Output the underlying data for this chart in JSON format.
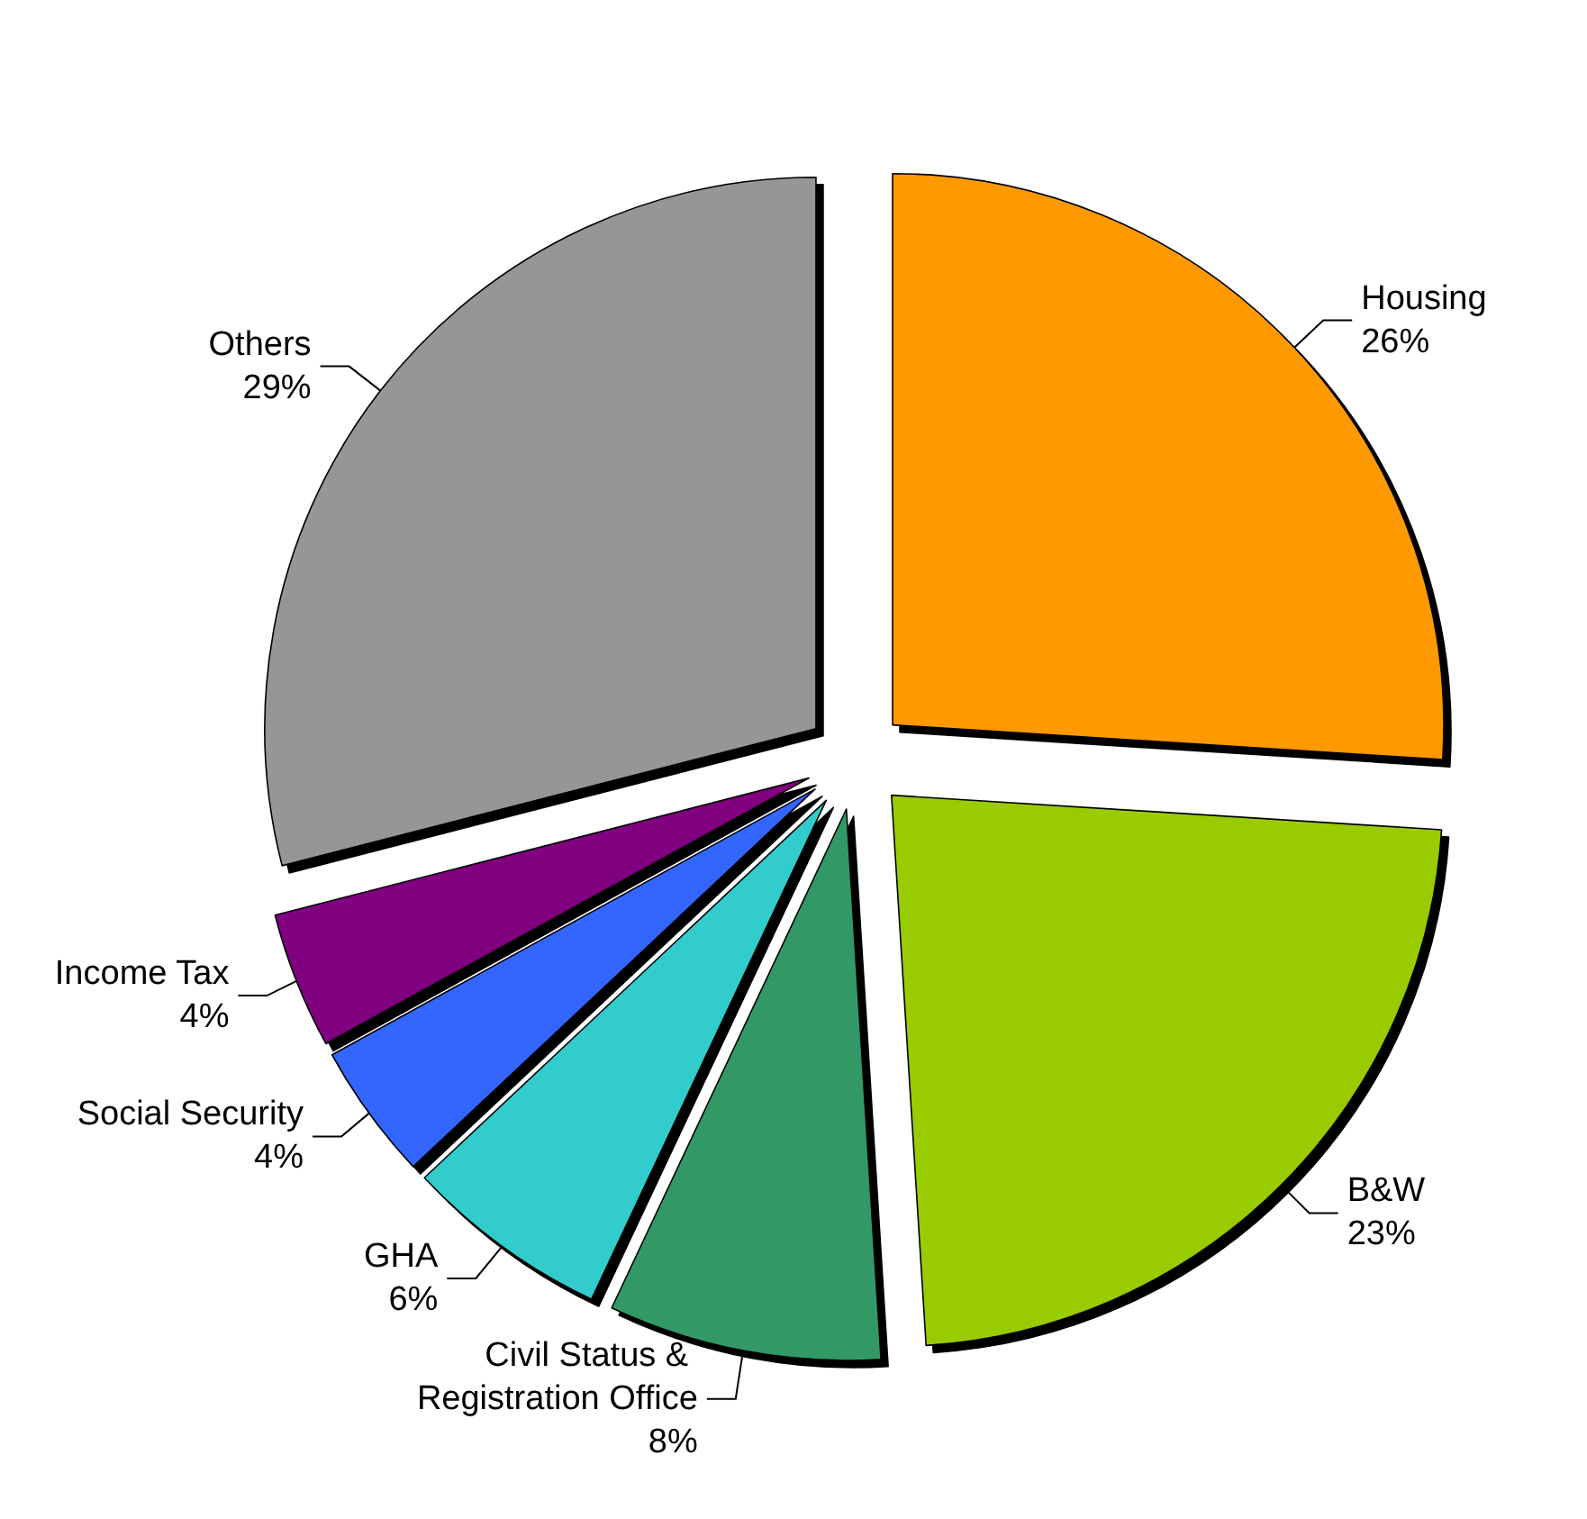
{
  "chart_data": {
    "type": "pie",
    "categories": [
      "Housing",
      "B&W",
      "Civil Status & Registration Office",
      "GHA",
      "Social Security",
      "Income Tax",
      "Others"
    ],
    "values": [
      26,
      23,
      8,
      6,
      4,
      4,
      29
    ],
    "value_labels": [
      "26%",
      "23%",
      "8%",
      "6%",
      "4%",
      "4%",
      "29%"
    ],
    "colors": [
      "#ff9900",
      "#99cc00",
      "#339966",
      "#33cccc",
      "#3366ff",
      "#800080",
      "#969696"
    ]
  }
}
